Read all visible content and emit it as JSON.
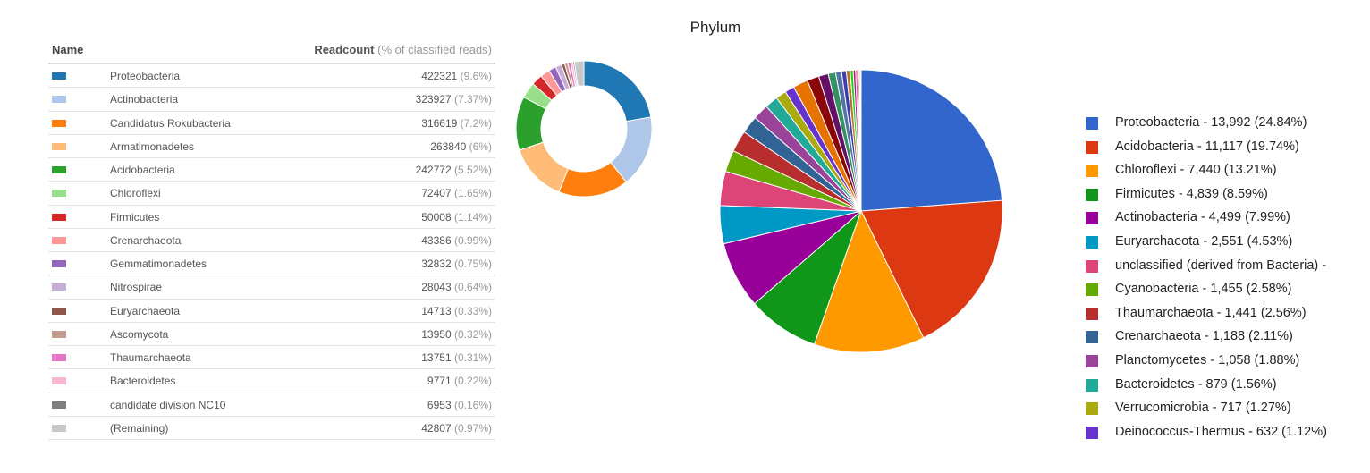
{
  "table": {
    "header_name": "Name",
    "header_count": "Readcount",
    "header_count_sub": "(% of classified reads)",
    "rows": [
      {
        "name": "Proteobacteria",
        "count": "422321",
        "pct": "(9.6%)",
        "color": "#1f77b4"
      },
      {
        "name": "Actinobacteria",
        "count": "323927",
        "pct": "(7.37%)",
        "color": "#aec7e8"
      },
      {
        "name": "Candidatus Rokubacteria",
        "count": "316619",
        "pct": "(7.2%)",
        "color": "#ff7f0e"
      },
      {
        "name": "Armatimonadetes",
        "count": "263840",
        "pct": "(6%)",
        "color": "#ffbb78"
      },
      {
        "name": "Acidobacteria",
        "count": "242772",
        "pct": "(5.52%)",
        "color": "#2ca02c"
      },
      {
        "name": "Chloroflexi",
        "count": "72407",
        "pct": "(1.65%)",
        "color": "#98df8a"
      },
      {
        "name": "Firmicutes",
        "count": "50008",
        "pct": "(1.14%)",
        "color": "#d62728"
      },
      {
        "name": "Crenarchaeota",
        "count": "43386",
        "pct": "(0.99%)",
        "color": "#ff9896"
      },
      {
        "name": "Gemmatimonadetes",
        "count": "32832",
        "pct": "(0.75%)",
        "color": "#9467bd"
      },
      {
        "name": "Nitrospirae",
        "count": "28043",
        "pct": "(0.64%)",
        "color": "#c5b0d5"
      },
      {
        "name": "Euryarchaeota",
        "count": "14713",
        "pct": "(0.33%)",
        "color": "#8c564b"
      },
      {
        "name": "Ascomycota",
        "count": "13950",
        "pct": "(0.32%)",
        "color": "#c49c94"
      },
      {
        "name": "Thaumarchaeota",
        "count": "13751",
        "pct": "(0.31%)",
        "color": "#e377c2"
      },
      {
        "name": "Bacteroidetes",
        "count": "9771",
        "pct": "(0.22%)",
        "color": "#f7b6d2"
      },
      {
        "name": "candidate division NC10",
        "count": "6953",
        "pct": "(0.16%)",
        "color": "#7f7f7f"
      },
      {
        "name": "(Remaining)",
        "count": "42807",
        "pct": "(0.97%)",
        "color": "#c7c7c7"
      }
    ]
  },
  "chart_data": [
    {
      "type": "pie",
      "variant": "donut",
      "labels": [
        "Proteobacteria",
        "Actinobacteria",
        "Candidatus Rokubacteria",
        "Armatimonadetes",
        "Acidobacteria",
        "Chloroflexi",
        "Firmicutes",
        "Crenarchaeota",
        "Gemmatimonadetes",
        "Nitrospirae",
        "Euryarchaeota",
        "Ascomycota",
        "Thaumarchaeota",
        "Bacteroidetes",
        "candidate division NC10",
        "(Remaining)"
      ],
      "values": [
        422321,
        323927,
        316619,
        263840,
        242772,
        72407,
        50008,
        43386,
        32832,
        28043,
        14713,
        13950,
        13751,
        9771,
        6953,
        42807
      ],
      "colors": [
        "#1f77b4",
        "#aec7e8",
        "#ff7f0e",
        "#ffbb78",
        "#2ca02c",
        "#98df8a",
        "#d62728",
        "#ff9896",
        "#9467bd",
        "#c5b0d5",
        "#8c564b",
        "#c49c94",
        "#e377c2",
        "#f7b6d2",
        "#7f7f7f",
        "#c7c7c7"
      ]
    },
    {
      "type": "pie",
      "title": "Phylum",
      "legend_position": "right",
      "legend": [
        "Proteobacteria - 13,992 (24.84%)",
        "Acidobacteria - 11,117 (19.74%)",
        "Chloroflexi - 7,440 (13.21%)",
        "Firmicutes - 4,839 (8.59%)",
        "Actinobacteria - 4,499 (7.99%)",
        "Euryarchaeota - 2,551 (4.53%)",
        "unclassified (derived from Bacteria) -",
        "Cyanobacteria - 1,455 (2.58%)",
        "Thaumarchaeota - 1,441 (2.56%)",
        "Crenarchaeota - 1,188 (2.11%)",
        "Planctomycetes - 1,058 (1.88%)",
        "Bacteroidetes - 879 (1.56%)",
        "Verrucomicrobia - 717 (1.27%)",
        "Deinococcus-Thermus - 632 (1.12%)"
      ],
      "values": [
        13992,
        11117,
        7440,
        4839,
        4499,
        2551,
        2300,
        1455,
        1441,
        1188,
        1058,
        879,
        717,
        632,
        1000,
        800,
        650,
        500,
        400,
        320,
        260,
        200,
        160,
        130,
        100,
        80,
        60
      ],
      "colors": [
        "#3366cc",
        "#dc3912",
        "#ff9900",
        "#109618",
        "#990099",
        "#0099c6",
        "#dd4477",
        "#66aa00",
        "#b82e2e",
        "#316395",
        "#994499",
        "#22aa99",
        "#aaaa11",
        "#6633cc",
        "#e67300",
        "#8b0707",
        "#651067",
        "#329262",
        "#5574a6",
        "#3b3eac",
        "#b77322",
        "#16d620",
        "#b91383",
        "#f4359e",
        "#9c5935",
        "#a9c413",
        "#2a778d"
      ]
    }
  ]
}
